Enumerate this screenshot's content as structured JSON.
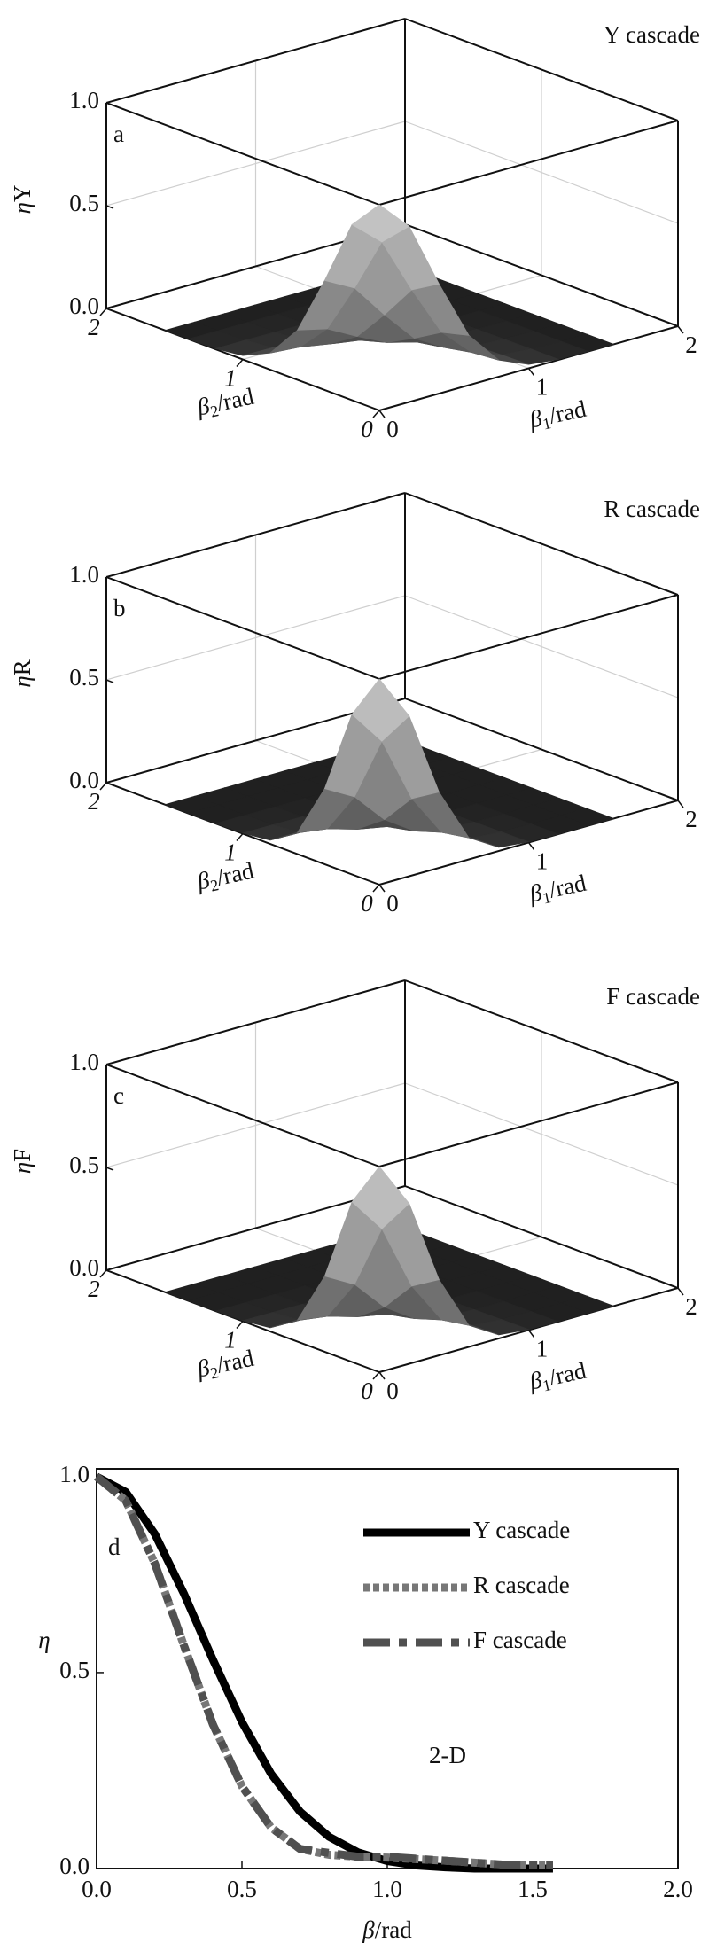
{
  "chart_data": [
    {
      "type": "surface",
      "title": "Y cascade",
      "panel_label": "a",
      "zlabel": [
        "η",
        "Y"
      ],
      "xlabel": [
        "β",
        "1",
        "/rad"
      ],
      "ylabel": [
        "β",
        "2",
        "/rad"
      ],
      "xlim": [
        0,
        2
      ],
      "ylim": [
        0,
        2
      ],
      "zlim": [
        0,
        1
      ],
      "xticks": [
        0,
        1,
        2
      ],
      "yticks": [
        0,
        1,
        2
      ],
      "zticks": [
        {
          "value": 0,
          "label": "0.0"
        },
        {
          "value": 0.5,
          "label": "0.5"
        },
        {
          "value": 1,
          "label": "1.0"
        }
      ],
      "grid": true,
      "x": [
        0,
        0.2,
        0.4,
        0.6,
        0.8,
        1.0,
        1.2,
        1.4,
        1.57
      ],
      "y": [
        0,
        0.2,
        0.4,
        0.6,
        0.8,
        1.0,
        1.2,
        1.4,
        1.57
      ],
      "z": [
        [
          1,
          0.854,
          0.533,
          0.242,
          0.081,
          0.019,
          0.003,
          0,
          0
        ],
        [
          0.854,
          0.729,
          0.455,
          0.207,
          0.069,
          0.016,
          0.003,
          0,
          0
        ],
        [
          0.533,
          0.455,
          0.284,
          0.129,
          0.043,
          0.01,
          0.002,
          0,
          0
        ],
        [
          0.242,
          0.207,
          0.129,
          0.059,
          0.02,
          0.005,
          0.001,
          0,
          0
        ],
        [
          0.081,
          0.069,
          0.043,
          0.02,
          0.007,
          0.002,
          0,
          0,
          0
        ],
        [
          0.019,
          0.016,
          0.01,
          0.005,
          0.002,
          0,
          0,
          0,
          0
        ],
        [
          0.003,
          0.003,
          0.002,
          0.001,
          0,
          0,
          0,
          0,
          0
        ],
        [
          0,
          0,
          0,
          0,
          0,
          0,
          0,
          0,
          0
        ],
        [
          0,
          0,
          0,
          0,
          0,
          0,
          0,
          0,
          0
        ]
      ]
    },
    {
      "type": "surface",
      "title": "R cascade",
      "panel_label": "b",
      "zlabel": [
        "η",
        "R"
      ],
      "xlabel": [
        "β",
        "1",
        "/rad"
      ],
      "ylabel": [
        "β",
        "2",
        "/rad"
      ],
      "xlim": [
        0,
        2
      ],
      "ylim": [
        0,
        2
      ],
      "zlim": [
        0,
        1
      ],
      "xticks": [
        0,
        1,
        2
      ],
      "yticks": [
        0,
        1,
        2
      ],
      "zticks": [
        {
          "value": 0,
          "label": "0.0"
        },
        {
          "value": 0.5,
          "label": "0.5"
        },
        {
          "value": 1,
          "label": "1.0"
        }
      ],
      "grid": true,
      "x": [
        0,
        0.2,
        0.4,
        0.6,
        0.8,
        1.0,
        1.2,
        1.4,
        1.57
      ],
      "y": [
        0,
        0.2,
        0.4,
        0.6,
        0.8,
        1.0,
        1.2,
        1.4,
        1.57
      ],
      "z": [
        [
          1,
          0.779,
          0.368,
          0.105,
          0.018,
          0.003,
          0,
          0,
          0
        ],
        [
          0.779,
          0.607,
          0.287,
          0.082,
          0.014,
          0.002,
          0,
          0,
          0
        ],
        [
          0.368,
          0.287,
          0.135,
          0.039,
          0.007,
          0.001,
          0,
          0,
          0
        ],
        [
          0.105,
          0.082,
          0.039,
          0.011,
          0.002,
          0,
          0,
          0,
          0
        ],
        [
          0.018,
          0.014,
          0.007,
          0.002,
          0,
          0,
          0,
          0,
          0
        ],
        [
          0.003,
          0.002,
          0.001,
          0,
          0,
          0,
          0,
          0,
          0
        ],
        [
          0,
          0,
          0,
          0,
          0,
          0,
          0,
          0,
          0
        ],
        [
          0,
          0,
          0,
          0,
          0,
          0,
          0,
          0,
          0
        ],
        [
          0,
          0,
          0,
          0,
          0,
          0,
          0,
          0,
          0
        ]
      ]
    },
    {
      "type": "surface",
      "title": "F cascade",
      "panel_label": "c",
      "zlabel": [
        "η",
        "F"
      ],
      "xlabel": [
        "β",
        "1",
        "/rad"
      ],
      "ylabel": [
        "β",
        "2",
        "/rad"
      ],
      "xlim": [
        0,
        2
      ],
      "ylim": [
        0,
        2
      ],
      "zlim": [
        0,
        1
      ],
      "xticks": [
        0,
        1,
        2
      ],
      "yticks": [
        0,
        1,
        2
      ],
      "zticks": [
        {
          "value": 0,
          "label": "0.0"
        },
        {
          "value": 0.5,
          "label": "0.5"
        },
        {
          "value": 1,
          "label": "1.0"
        }
      ],
      "grid": true,
      "x": [
        0,
        0.2,
        0.4,
        0.6,
        0.8,
        1.0,
        1.2,
        1.4,
        1.57
      ],
      "y": [
        0,
        0.2,
        0.4,
        0.6,
        0.8,
        1.0,
        1.2,
        1.4,
        1.57
      ],
      "z": [
        [
          1,
          0.779,
          0.368,
          0.105,
          0.018,
          0.003,
          0,
          0,
          0
        ],
        [
          0.779,
          0.607,
          0.287,
          0.082,
          0.014,
          0.002,
          0,
          0,
          0
        ],
        [
          0.368,
          0.287,
          0.135,
          0.039,
          0.007,
          0.001,
          0,
          0,
          0
        ],
        [
          0.105,
          0.082,
          0.039,
          0.011,
          0.002,
          0,
          0,
          0,
          0
        ],
        [
          0.018,
          0.014,
          0.007,
          0.002,
          0,
          0,
          0,
          0,
          0
        ],
        [
          0.003,
          0.002,
          0.001,
          0,
          0,
          0,
          0,
          0,
          0
        ],
        [
          0,
          0,
          0,
          0,
          0,
          0,
          0,
          0,
          0
        ],
        [
          0,
          0,
          0,
          0,
          0,
          0,
          0,
          0,
          0
        ],
        [
          0,
          0,
          0,
          0,
          0,
          0,
          0,
          0,
          0
        ]
      ]
    },
    {
      "type": "line",
      "panel_label": "d",
      "annotation": "2-D",
      "xlabel": [
        "β",
        "/rad"
      ],
      "ylabel": "η",
      "xlim": [
        0,
        2
      ],
      "ylim": [
        0,
        1.02
      ],
      "xticks": [
        {
          "value": 0,
          "label": "0.0"
        },
        {
          "value": 0.5,
          "label": "0.5"
        },
        {
          "value": 1,
          "label": "1.0"
        },
        {
          "value": 1.5,
          "label": "1.5"
        },
        {
          "value": 2,
          "label": "2.0"
        }
      ],
      "yticks": [
        {
          "value": 0,
          "label": "0.0"
        },
        {
          "value": 0.5,
          "label": "0.5"
        },
        {
          "value": 1,
          "label": "1.0"
        }
      ],
      "legend": "upper right",
      "x": [
        0,
        0.1,
        0.2,
        0.3,
        0.4,
        0.5,
        0.6,
        0.7,
        0.8,
        0.9,
        1.0,
        1.1,
        1.2,
        1.3,
        1.4,
        1.5,
        1.57
      ],
      "series": [
        {
          "name": "Y cascade",
          "color": "#000000",
          "dash": "solid",
          "values": [
            1,
            0.961,
            0.854,
            0.702,
            0.533,
            0.374,
            0.242,
            0.145,
            0.081,
            0.041,
            0.019,
            0.008,
            0.003,
            0,
            0,
            0,
            0
          ]
        },
        {
          "name": "R cascade",
          "color": "#777777",
          "dash": "dotted",
          "values": [
            1,
            0.939,
            0.779,
            0.57,
            0.368,
            0.21,
            0.105,
            0.05,
            0.035,
            0.03,
            0.028,
            0.024,
            0.02,
            0.015,
            0.01,
            0.01,
            0.01
          ]
        },
        {
          "name": "F cascade",
          "color": "#505050",
          "dash": "dashdot",
          "values": [
            1,
            0.939,
            0.779,
            0.57,
            0.368,
            0.21,
            0.105,
            0.05,
            0.04,
            0.03,
            0.03,
            0.025,
            0.02,
            0.015,
            0.01,
            0.01,
            0.01
          ]
        }
      ]
    }
  ]
}
